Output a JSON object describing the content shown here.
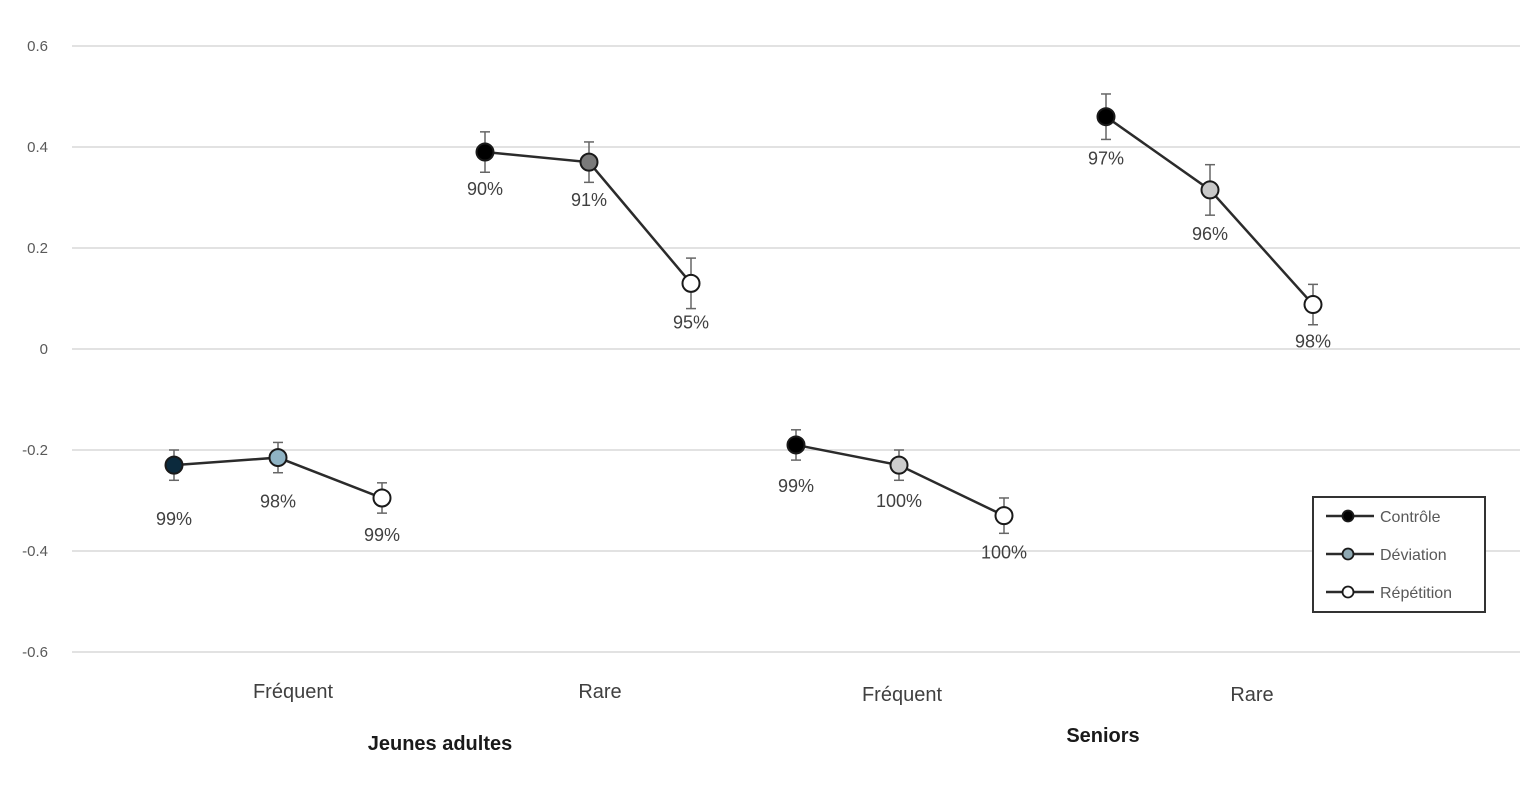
{
  "chart_data": {
    "type": "line",
    "title": "",
    "xlabel": "",
    "ylabel": "",
    "ylim": [
      -0.6,
      0.6
    ],
    "yticks": [
      "0.6",
      "0.4",
      "0.2",
      "0",
      "-0.2",
      "-0.4",
      "-0.6"
    ],
    "grid": true,
    "legend_position": "right",
    "legend": [
      {
        "name": "Contrôle",
        "color": "#000000"
      },
      {
        "name": "Déviation",
        "color": "#8fa9b3"
      },
      {
        "name": "Répétition",
        "color": "#ffffff"
      }
    ],
    "groups": [
      {
        "name": "Jeunes adultes",
        "categories": [
          "Fréquent",
          "Rare"
        ]
      },
      {
        "name": "Seniors",
        "categories": [
          "Fréquent",
          "Rare"
        ]
      }
    ],
    "clusters": [
      {
        "group": "Jeunes adultes",
        "category": "Fréquent",
        "points": [
          {
            "series": "Contrôle",
            "y": -0.23,
            "err": 0.03,
            "label": "99%",
            "color": "#0b2a3d"
          },
          {
            "series": "Déviation",
            "y": -0.215,
            "err": 0.03,
            "label": "98%",
            "color": "#8fb3c4"
          },
          {
            "series": "Répétition",
            "y": -0.295,
            "err": 0.03,
            "label": "99%",
            "color": "#ffffff"
          }
        ]
      },
      {
        "group": "Jeunes adultes",
        "category": "Rare",
        "points": [
          {
            "series": "Contrôle",
            "y": 0.39,
            "err": 0.04,
            "label": "90%",
            "color": "#000000"
          },
          {
            "series": "Déviation",
            "y": 0.37,
            "err": 0.04,
            "label": "91%",
            "color": "#7a7a7a"
          },
          {
            "series": "Répétition",
            "y": 0.13,
            "err": 0.05,
            "label": "95%",
            "color": "#ffffff"
          }
        ]
      },
      {
        "group": "Seniors",
        "category": "Fréquent",
        "points": [
          {
            "series": "Contrôle",
            "y": -0.19,
            "err": 0.03,
            "label": "99%",
            "color": "#000000"
          },
          {
            "series": "Déviation",
            "y": -0.23,
            "err": 0.03,
            "label": "100%",
            "color": "#cccccc"
          },
          {
            "series": "Répétition",
            "y": -0.33,
            "err": 0.035,
            "label": "100%",
            "color": "#ffffff"
          }
        ]
      },
      {
        "group": "Seniors",
        "category": "Rare",
        "points": [
          {
            "series": "Contrôle",
            "y": 0.46,
            "err": 0.045,
            "label": "97%",
            "color": "#000000"
          },
          {
            "series": "Déviation",
            "y": 0.315,
            "err": 0.05,
            "label": "96%",
            "color": "#c8c8c8"
          },
          {
            "series": "Répétition",
            "y": 0.088,
            "err": 0.04,
            "label": "98%",
            "color": "#ffffff"
          }
        ]
      }
    ]
  }
}
